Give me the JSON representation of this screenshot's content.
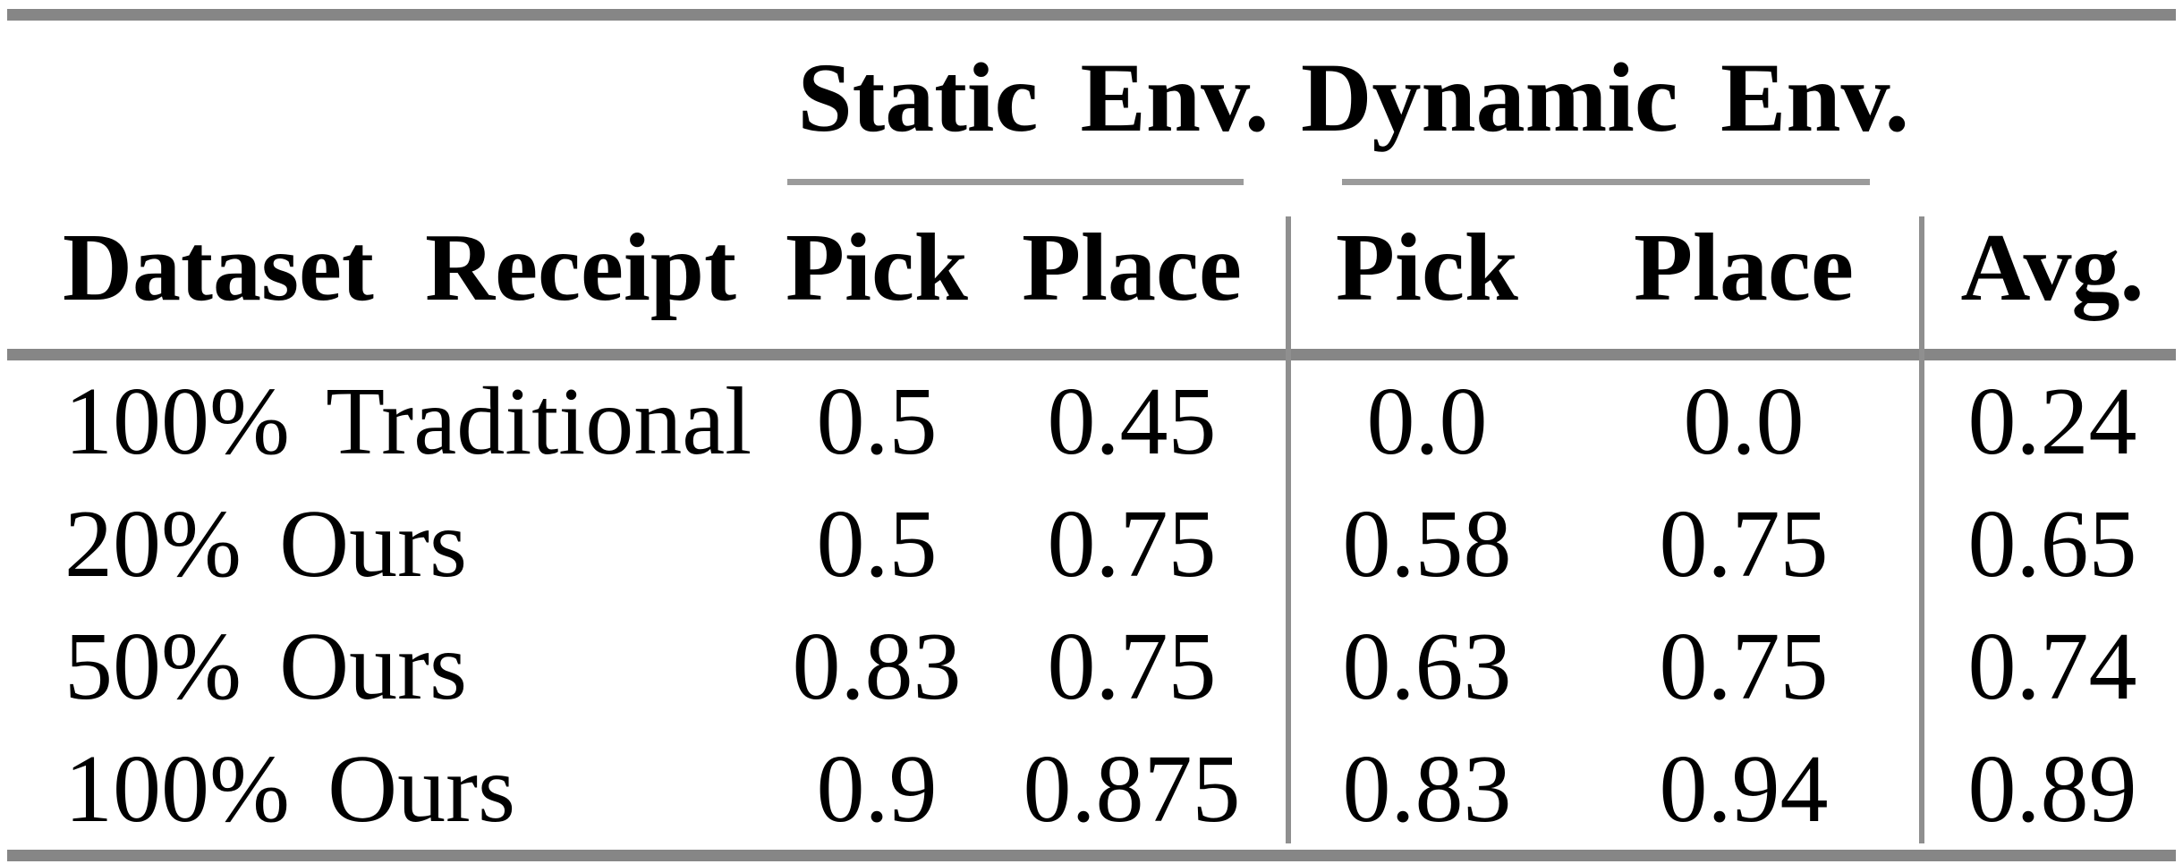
{
  "colors": {
    "heavy_rule": "#868686",
    "light_rule": "#9b9b9b",
    "divider": "#8f8f8f",
    "text": "#000000",
    "background": "#ffffff"
  },
  "table": {
    "corner_header": "Dataset Receipt",
    "groups": [
      {
        "label": "Static Env.",
        "subcolumns": [
          "Pick",
          "Place"
        ]
      },
      {
        "label": "Dynamic Env.",
        "subcolumns": [
          "Pick",
          "Place"
        ]
      }
    ],
    "avg_header": "Avg.",
    "rows": [
      {
        "label": "100% Traditional",
        "values": [
          "0.5",
          "0.45",
          "0.0",
          "0.0",
          "0.24"
        ]
      },
      {
        "label": "20% Ours",
        "values": [
          "0.5",
          "0.75",
          "0.58",
          "0.75",
          "0.65"
        ]
      },
      {
        "label": "50% Ours",
        "values": [
          "0.83",
          "0.75",
          "0.63",
          "0.75",
          "0.74"
        ]
      },
      {
        "label": "100% Ours",
        "values": [
          "0.9",
          "0.875",
          "0.83",
          "0.94",
          "0.89"
        ]
      }
    ]
  },
  "chart_data": {
    "type": "table",
    "columns": [
      "Dataset Receipt",
      "Static Env. Pick",
      "Static Env. Place",
      "Dynamic Env. Pick",
      "Dynamic Env. Place",
      "Avg."
    ],
    "rows": [
      [
        "100% Traditional",
        0.5,
        0.45,
        0.0,
        0.0,
        0.24
      ],
      [
        "20% Ours",
        0.5,
        0.75,
        0.58,
        0.75,
        0.65
      ],
      [
        "50% Ours",
        0.83,
        0.75,
        0.63,
        0.75,
        0.74
      ],
      [
        "100% Ours",
        0.9,
        0.875,
        0.83,
        0.94,
        0.89
      ]
    ]
  }
}
